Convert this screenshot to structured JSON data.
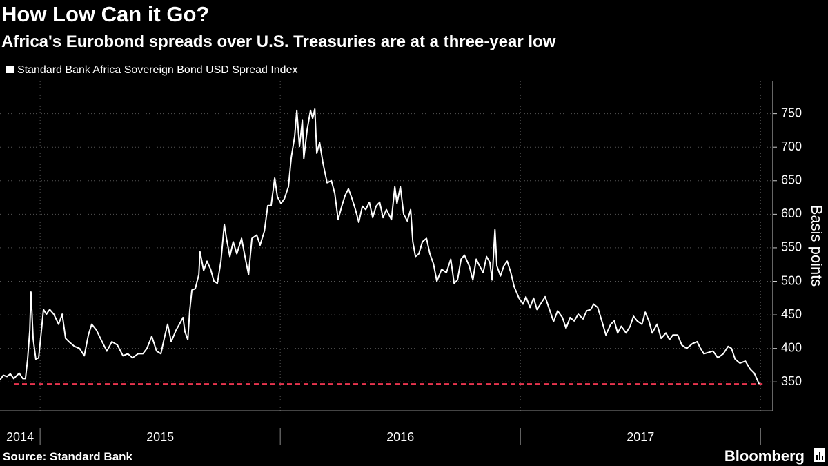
{
  "chart_data": {
    "type": "line",
    "title": "How Low Can it Go?",
    "subtitle": "Africa's Eurobond spreads over U.S. Treasuries are at a three-year low",
    "y_label": "Basis points",
    "source": "Source: Standard Bank",
    "brand": "Bloomberg",
    "xlim": [
      2014.833,
      2018.051
    ],
    "xticks": [
      2015,
      2016,
      2017,
      2018
    ],
    "year_labels": [
      "2014",
      "2015",
      "2016",
      "2017"
    ],
    "ylim": [
      307,
      798
    ],
    "yticks": [
      350,
      400,
      450,
      500,
      550,
      600,
      650,
      700,
      750
    ],
    "grid": true,
    "reference_line": {
      "value": 347,
      "color": "#e8344e"
    },
    "series": [
      {
        "name": "Standard Bank Africa Sovereign Bond USD Spread Index",
        "color": "#ffffff",
        "x": [
          2014.833,
          2014.847,
          2014.862,
          2014.876,
          2014.89,
          2014.913,
          2014.928,
          2014.939,
          2014.948,
          2014.957,
          2014.962,
          2014.971,
          2014.982,
          2014.994,
          2015.005,
          2015.014,
          2015.026,
          2015.04,
          2015.057,
          2015.077,
          2015.092,
          2015.106,
          2015.12,
          2015.143,
          2015.164,
          2015.184,
          2015.201,
          2015.215,
          2015.235,
          2015.258,
          2015.278,
          2015.299,
          2015.322,
          2015.345,
          2015.365,
          2015.385,
          2015.408,
          2015.428,
          2015.445,
          2015.465,
          2015.485,
          2015.503,
          2015.517,
          2015.531,
          2015.546,
          2015.566,
          2015.58,
          2015.595,
          2015.603,
          2015.615,
          2015.623,
          2015.632,
          2015.646,
          2015.661,
          2015.666,
          2015.681,
          2015.695,
          2015.71,
          2015.724,
          2015.738,
          2015.753,
          2015.767,
          2015.776,
          2015.79,
          2015.804,
          2015.819,
          2015.839,
          2015.853,
          2015.868,
          2015.882,
          2015.902,
          2015.916,
          2015.934,
          2015.948,
          2015.962,
          2015.977,
          2015.988,
          2016.003,
          2016.017,
          2016.034,
          2016.046,
          2016.06,
          2016.069,
          2016.08,
          2016.092,
          2016.098,
          2016.112,
          2016.126,
          2016.135,
          2016.144,
          2016.152,
          2016.164,
          2016.178,
          2016.195,
          2016.213,
          2016.227,
          2016.241,
          2016.256,
          2016.27,
          2016.284,
          2016.299,
          2016.313,
          2016.327,
          2016.342,
          2016.356,
          2016.371,
          2016.385,
          2016.399,
          2016.414,
          2016.428,
          2016.442,
          2016.463,
          2016.477,
          2016.486,
          2016.5,
          2016.514,
          2016.529,
          2016.543,
          2016.552,
          2016.563,
          2016.577,
          2016.592,
          2016.609,
          2016.623,
          2016.638,
          2016.652,
          2016.672,
          2016.692,
          2016.71,
          2016.724,
          2016.738,
          2016.753,
          2016.767,
          2016.787,
          2016.802,
          2016.816,
          2016.83,
          2016.845,
          2016.859,
          2016.873,
          2016.882,
          2016.894,
          2016.902,
          2016.917,
          2016.931,
          2016.945,
          2016.96,
          2016.974,
          2016.994,
          2017.011,
          2017.023,
          2017.04,
          2017.055,
          2017.069,
          2017.089,
          2017.103,
          2017.121,
          2017.138,
          2017.155,
          2017.175,
          2017.19,
          2017.207,
          2017.224,
          2017.241,
          2017.261,
          2017.276,
          2017.293,
          2017.305,
          2017.322,
          2017.339,
          2017.356,
          2017.376,
          2017.391,
          2017.405,
          2017.42,
          2017.44,
          2017.457,
          2017.471,
          2017.486,
          2017.506,
          2017.52,
          2017.535,
          2017.549,
          2017.569,
          2017.586,
          2017.606,
          2017.621,
          2017.635,
          2017.655,
          2017.672,
          2017.693,
          2017.716,
          2017.736,
          2017.75,
          2017.764,
          2017.784,
          2017.802,
          2017.822,
          2017.845,
          2017.865,
          2017.879,
          2017.894,
          2017.914,
          2017.937,
          2017.957,
          2017.974,
          2017.994
        ],
        "values": [
          353,
          360,
          358,
          362,
          355,
          363,
          355,
          355,
          384,
          427,
          484,
          415,
          384,
          386,
          425,
          458,
          451,
          458,
          451,
          436,
          451,
          415,
          410,
          403,
          400,
          389,
          420,
          436,
          427,
          410,
          396,
          410,
          405,
          389,
          392,
          386,
          392,
          392,
          400,
          418,
          396,
          392,
          415,
          436,
          410,
          427,
          436,
          446,
          425,
          413,
          456,
          487,
          489,
          510,
          544,
          516,
          530,
          518,
          500,
          497,
          530,
          585,
          564,
          537,
          559,
          541,
          564,
          537,
          510,
          564,
          569,
          554,
          575,
          613,
          613,
          654,
          626,
          616,
          623,
          641,
          685,
          716,
          755,
          701,
          740,
          683,
          726,
          755,
          743,
          757,
          691,
          707,
          676,
          647,
          650,
          631,
          592,
          612,
          628,
          638,
          623,
          607,
          588,
          612,
          607,
          618,
          595,
          612,
          618,
          595,
          607,
          592,
          641,
          616,
          641,
          600,
          590,
          607,
          559,
          537,
          541,
          559,
          564,
          541,
          526,
          500,
          518,
          513,
          533,
          497,
          502,
          533,
          539,
          523,
          502,
          533,
          523,
          513,
          537,
          528,
          502,
          577,
          523,
          508,
          523,
          530,
          513,
          492,
          475,
          466,
          477,
          461,
          475,
          458,
          469,
          477,
          458,
          440,
          456,
          446,
          430,
          446,
          441,
          451,
          444,
          456,
          458,
          466,
          461,
          441,
          420,
          436,
          441,
          423,
          433,
          423,
          433,
          448,
          441,
          436,
          454,
          441,
          423,
          436,
          415,
          423,
          413,
          420,
          420,
          405,
          400,
          407,
          410,
          400,
          392,
          394,
          396,
          386,
          392,
          403,
          400,
          384,
          378,
          381,
          369,
          363,
          347
        ]
      }
    ]
  }
}
